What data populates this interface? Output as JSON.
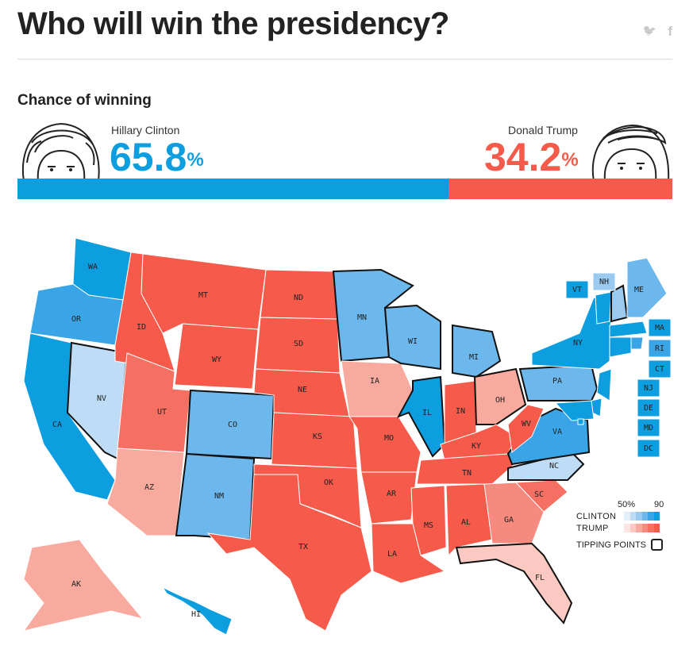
{
  "header": {
    "title": "Who will win the presidency?",
    "share": [
      "twitter-icon",
      "facebook-icon"
    ],
    "twitter_glyph": "🐦",
    "facebook_glyph": "f"
  },
  "subtitle": "Chance of winning",
  "candidates": {
    "clinton": {
      "name": "Hillary Clinton",
      "pct": "65.8",
      "pct_sign": "%",
      "share": 0.658,
      "color": "#0d9ee0"
    },
    "trump": {
      "name": "Donald Trump",
      "pct": "34.2",
      "pct_sign": "%",
      "share": 0.342,
      "color": "#f55a4b"
    }
  },
  "map": {
    "states": [
      {
        "abbr": "WA",
        "party": "D",
        "level": 5
      },
      {
        "abbr": "OR",
        "party": "D",
        "level": 4
      },
      {
        "abbr": "CA",
        "party": "D",
        "level": 5
      },
      {
        "abbr": "NV",
        "party": "D",
        "level": 1
      },
      {
        "abbr": "ID",
        "party": "R",
        "level": 5
      },
      {
        "abbr": "MT",
        "party": "R",
        "level": 5
      },
      {
        "abbr": "WY",
        "party": "R",
        "level": 5
      },
      {
        "abbr": "UT",
        "party": "R",
        "level": 4
      },
      {
        "abbr": "AZ",
        "party": "R",
        "level": 2
      },
      {
        "abbr": "CO",
        "party": "D",
        "level": 3
      },
      {
        "abbr": "NM",
        "party": "D",
        "level": 3
      },
      {
        "abbr": "ND",
        "party": "R",
        "level": 5
      },
      {
        "abbr": "SD",
        "party": "R",
        "level": 5
      },
      {
        "abbr": "NE",
        "party": "R",
        "level": 5
      },
      {
        "abbr": "KS",
        "party": "R",
        "level": 5
      },
      {
        "abbr": "OK",
        "party": "R",
        "level": 5
      },
      {
        "abbr": "TX",
        "party": "R",
        "level": 5
      },
      {
        "abbr": "MN",
        "party": "D",
        "level": 3
      },
      {
        "abbr": "IA",
        "party": "R",
        "level": 2
      },
      {
        "abbr": "MO",
        "party": "R",
        "level": 5
      },
      {
        "abbr": "AR",
        "party": "R",
        "level": 5
      },
      {
        "abbr": "LA",
        "party": "R",
        "level": 5
      },
      {
        "abbr": "WI",
        "party": "D",
        "level": 3
      },
      {
        "abbr": "IL",
        "party": "D",
        "level": 5
      },
      {
        "abbr": "MI",
        "party": "D",
        "level": 3
      },
      {
        "abbr": "IN",
        "party": "R",
        "level": 5
      },
      {
        "abbr": "OH",
        "party": "R",
        "level": 2
      },
      {
        "abbr": "KY",
        "party": "R",
        "level": 5
      },
      {
        "abbr": "TN",
        "party": "R",
        "level": 5
      },
      {
        "abbr": "MS",
        "party": "R",
        "level": 5
      },
      {
        "abbr": "AL",
        "party": "R",
        "level": 5
      },
      {
        "abbr": "GA",
        "party": "R",
        "level": 3
      },
      {
        "abbr": "FL",
        "party": "R",
        "level": 1
      },
      {
        "abbr": "SC",
        "party": "R",
        "level": 4
      },
      {
        "abbr": "NC",
        "party": "D",
        "level": 1
      },
      {
        "abbr": "VA",
        "party": "D",
        "level": 4
      },
      {
        "abbr": "WV",
        "party": "R",
        "level": 5
      },
      {
        "abbr": "PA",
        "party": "D",
        "level": 3
      },
      {
        "abbr": "NY",
        "party": "D",
        "level": 5
      },
      {
        "abbr": "VT",
        "party": "D",
        "level": 5
      },
      {
        "abbr": "NH",
        "party": "D",
        "level": 2
      },
      {
        "abbr": "ME",
        "party": "D",
        "level": 3
      },
      {
        "abbr": "MA",
        "party": "D",
        "level": 5
      },
      {
        "abbr": "RI",
        "party": "D",
        "level": 4
      },
      {
        "abbr": "CT",
        "party": "D",
        "level": 5
      },
      {
        "abbr": "NJ",
        "party": "D",
        "level": 5
      },
      {
        "abbr": "DE",
        "party": "D",
        "level": 5
      },
      {
        "abbr": "MD",
        "party": "D",
        "level": 5
      },
      {
        "abbr": "DC",
        "party": "D",
        "level": 5
      },
      {
        "abbr": "AK",
        "party": "R",
        "level": 2
      },
      {
        "abbr": "HI",
        "party": "D",
        "level": 5
      }
    ],
    "tipping_points": [
      "WI",
      "MN",
      "MI",
      "PA",
      "VA",
      "NC",
      "FL",
      "CO",
      "NV",
      "IL",
      "NH",
      "OH",
      "NM"
    ]
  },
  "legend": {
    "scale_low": "50%",
    "scale_high": "90",
    "clinton_label": "CLINTON",
    "trump_label": "TRUMP",
    "tipping_label": "TIPPING POINTS",
    "clinton_scale": [
      "#e1effb",
      "#bfdcf6",
      "#9bcaf1",
      "#6cb7ec",
      "#3aa5e6",
      "#0d9ee0"
    ],
    "trump_scale": [
      "#fde5e1",
      "#fbc9c1",
      "#f8aa9f",
      "#f68a7e",
      "#f56f62",
      "#f55a4b"
    ]
  }
}
